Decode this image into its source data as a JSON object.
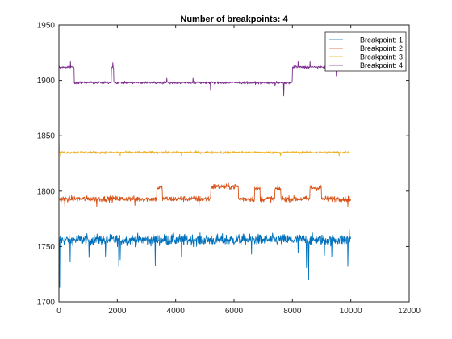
{
  "chart_data": {
    "type": "line",
    "title": "Number of breakpoints: 4",
    "xlabel": "",
    "ylabel": "",
    "xlim": [
      0,
      12000
    ],
    "ylim": [
      1700,
      1950
    ],
    "x_ticks": [
      0,
      2000,
      4000,
      6000,
      8000,
      10000,
      12000
    ],
    "x_tick_labels": [
      "0",
      "2000",
      "4000",
      "6000",
      "8000",
      "10000",
      "12000"
    ],
    "y_ticks": [
      1700,
      1750,
      1800,
      1850,
      1900,
      1950
    ],
    "y_tick_labels": [
      "1700",
      "1750",
      "1800",
      "1850",
      "1900",
      "1950"
    ],
    "grid": false,
    "legend_position": "top-right",
    "series": [
      {
        "name": "Breakpoint: 1",
        "color": "#0072BD",
        "noise": 3.5,
        "segments": [
          {
            "x0": 0,
            "x1": 10000,
            "y": 1756
          }
        ],
        "spikes": [
          {
            "x": 20,
            "y": 1713
          },
          {
            "x": 380,
            "y": 1736
          },
          {
            "x": 1030,
            "y": 1740
          },
          {
            "x": 1600,
            "y": 1741
          },
          {
            "x": 2050,
            "y": 1732
          },
          {
            "x": 2100,
            "y": 1738
          },
          {
            "x": 3300,
            "y": 1733
          },
          {
            "x": 4200,
            "y": 1741
          },
          {
            "x": 6600,
            "y": 1743
          },
          {
            "x": 8200,
            "y": 1744
          },
          {
            "x": 8480,
            "y": 1731
          },
          {
            "x": 8560,
            "y": 1720
          },
          {
            "x": 9100,
            "y": 1742
          },
          {
            "x": 9350,
            "y": 1741
          },
          {
            "x": 9900,
            "y": 1732
          },
          {
            "x": 9950,
            "y": 1765
          }
        ]
      },
      {
        "name": "Breakpoint: 2",
        "color": "#D95319",
        "noise": 1.8,
        "segments": [
          {
            "x0": 0,
            "x1": 3350,
            "y": 1793
          },
          {
            "x0": 3350,
            "x1": 3550,
            "y": 1803
          },
          {
            "x0": 3550,
            "x1": 5200,
            "y": 1793
          },
          {
            "x0": 5200,
            "x1": 6150,
            "y": 1804
          },
          {
            "x0": 6150,
            "x1": 6700,
            "y": 1793
          },
          {
            "x0": 6700,
            "x1": 6900,
            "y": 1802
          },
          {
            "x0": 6900,
            "x1": 7400,
            "y": 1793
          },
          {
            "x0": 7400,
            "x1": 7600,
            "y": 1802
          },
          {
            "x0": 7600,
            "x1": 8600,
            "y": 1793
          },
          {
            "x0": 8600,
            "x1": 9000,
            "y": 1803
          },
          {
            "x0": 9000,
            "x1": 10000,
            "y": 1793
          }
        ],
        "spikes": [
          {
            "x": 200,
            "y": 1785
          },
          {
            "x": 1300,
            "y": 1786
          },
          {
            "x": 2600,
            "y": 1787
          },
          {
            "x": 4800,
            "y": 1786
          },
          {
            "x": 9900,
            "y": 1786
          }
        ]
      },
      {
        "name": "Breakpoint: 3",
        "color": "#EDB120",
        "noise": 0.8,
        "segments": [
          {
            "x0": 0,
            "x1": 10000,
            "y": 1835
          }
        ],
        "spikes": [
          {
            "x": 5,
            "y": 1849
          },
          {
            "x": 60,
            "y": 1831
          },
          {
            "x": 2100,
            "y": 1832
          },
          {
            "x": 4200,
            "y": 1832
          },
          {
            "x": 7600,
            "y": 1832
          },
          {
            "x": 9600,
            "y": 1832
          }
        ]
      },
      {
        "name": "Breakpoint: 4",
        "color": "#7E2F8E",
        "noise": 0.8,
        "segments": [
          {
            "x0": 0,
            "x1": 520,
            "y": 1912
          },
          {
            "x0": 520,
            "x1": 1800,
            "y": 1898
          },
          {
            "x0": 1800,
            "x1": 1880,
            "y": 1912
          },
          {
            "x0": 1880,
            "x1": 8000,
            "y": 1898
          },
          {
            "x0": 8000,
            "x1": 10000,
            "y": 1912
          }
        ],
        "spikes": [
          {
            "x": 400,
            "y": 1917
          },
          {
            "x": 1850,
            "y": 1916
          },
          {
            "x": 3700,
            "y": 1902
          },
          {
            "x": 4600,
            "y": 1902
          },
          {
            "x": 5200,
            "y": 1891
          },
          {
            "x": 7400,
            "y": 1895
          },
          {
            "x": 7700,
            "y": 1886
          },
          {
            "x": 8200,
            "y": 1917
          },
          {
            "x": 8600,
            "y": 1917
          },
          {
            "x": 9300,
            "y": 1917
          },
          {
            "x": 9500,
            "y": 1904
          }
        ]
      }
    ]
  }
}
